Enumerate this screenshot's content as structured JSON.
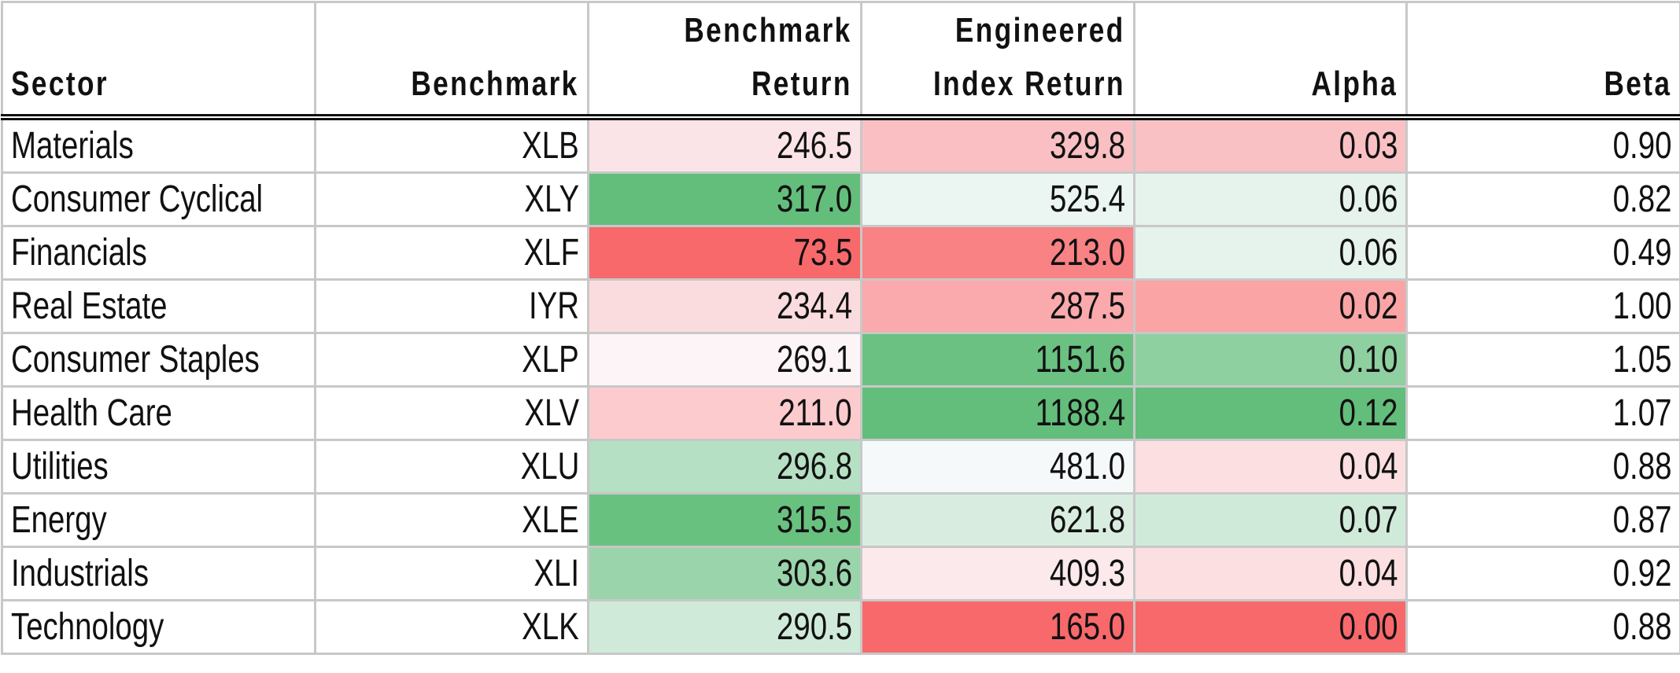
{
  "table": {
    "header": [
      [
        "Sector"
      ],
      [
        "Benchmark"
      ],
      [
        "Benchmark",
        "Return"
      ],
      [
        "Engineered",
        "Index Return"
      ],
      [
        "Alpha"
      ],
      [
        "Beta"
      ]
    ],
    "rows": [
      [
        "Materials",
        "XLB",
        "246.5",
        "329.8",
        "0.03",
        "0.90"
      ],
      [
        "Consumer Cyclical",
        "XLY",
        "317.0",
        "525.4",
        "0.06",
        "0.82"
      ],
      [
        "Financials",
        "XLF",
        "73.5",
        "213.0",
        "0.06",
        "0.49"
      ],
      [
        "Real Estate",
        "IYR",
        "234.4",
        "287.5",
        "0.02",
        "1.00"
      ],
      [
        "Consumer Staples",
        "XLP",
        "269.1",
        "1151.6",
        "0.10",
        "1.05"
      ],
      [
        "Health Care",
        "XLV",
        "211.0",
        "1188.4",
        "0.12",
        "1.07"
      ],
      [
        "Utilities",
        "XLU",
        "296.8",
        "481.0",
        "0.04",
        "0.88"
      ],
      [
        "Energy",
        "XLE",
        "315.5",
        "621.8",
        "0.07",
        "0.87"
      ],
      [
        "Industrials",
        "XLI",
        "303.6",
        "409.3",
        "0.04",
        "0.92"
      ],
      [
        "Technology",
        "XLK",
        "290.5",
        "165.0",
        "0.00",
        "0.88"
      ]
    ],
    "color_scale": {
      "columns": [
        2,
        3,
        4
      ],
      "low": "#f8696b",
      "mid": "#fcfcff",
      "high": "#63be7b"
    }
  }
}
